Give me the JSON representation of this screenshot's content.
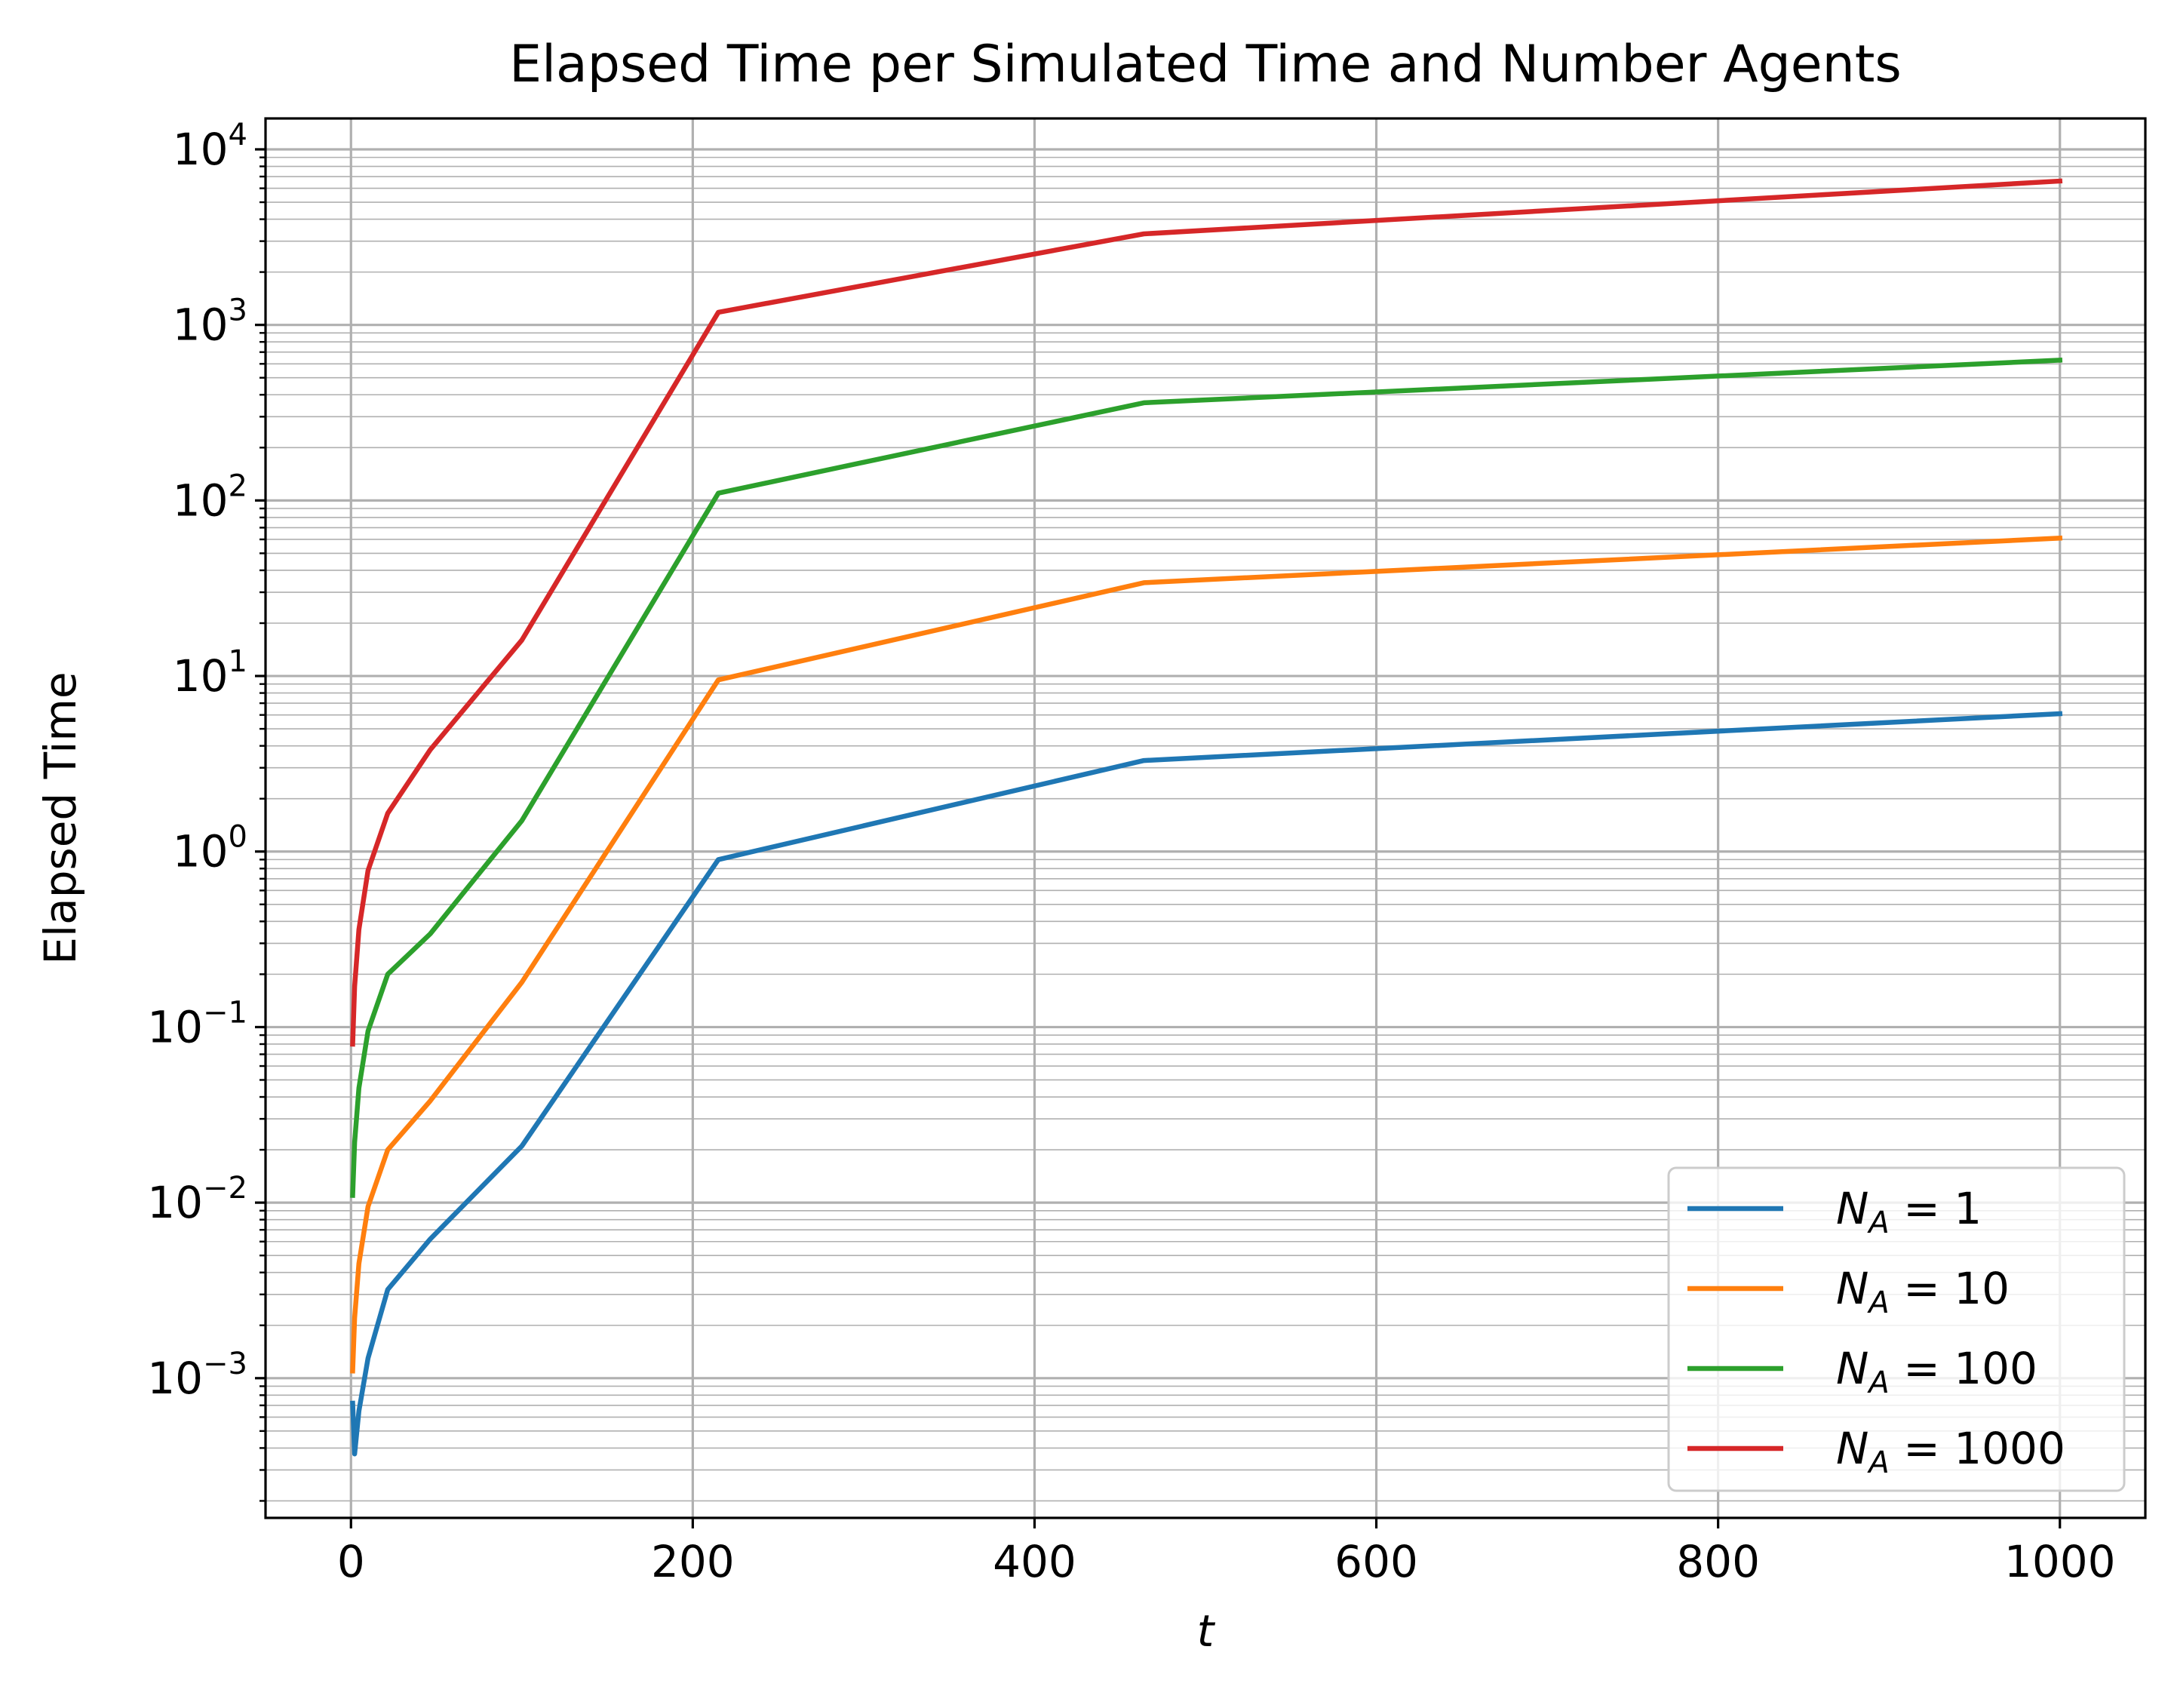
{
  "chart_data": {
    "type": "line",
    "title": "Elapsed Time per Simulated Time and Number Agents",
    "xlabel": "t",
    "ylabel": "Elapsed Time",
    "xlim": [
      -50,
      1050
    ],
    "ylim": [
      0.00016,
      15000
    ],
    "yscale": "log",
    "grid": "major and minor",
    "legend_position": "lower-right",
    "xticks": [
      0,
      200,
      400,
      600,
      800,
      1000
    ],
    "xtick_labels": [
      "0",
      "200",
      "400",
      "600",
      "800",
      "1000"
    ],
    "yticks": [
      0.001,
      0.01,
      0.1,
      1,
      10,
      100,
      1000,
      10000
    ],
    "ytick_labels": [
      {
        "base": "10",
        "exp": "−3"
      },
      {
        "base": "10",
        "exp": "−2"
      },
      {
        "base": "10",
        "exp": "−1"
      },
      {
        "base": "10",
        "exp": "0"
      },
      {
        "base": "10",
        "exp": "1"
      },
      {
        "base": "10",
        "exp": "2"
      },
      {
        "base": "10",
        "exp": "3"
      },
      {
        "base": "10",
        "exp": "4"
      }
    ],
    "x": [
      1,
      2.15,
      4.64,
      10,
      21.5,
      46.4,
      100,
      215,
      464,
      1000
    ],
    "series": [
      {
        "name": "N_A = 1",
        "legend": {
          "var": "N",
          "sub": "A",
          "rest": " = 1"
        },
        "color": "#1f77b4",
        "values": [
          0.00072,
          0.00037,
          0.00065,
          0.0013,
          0.0032,
          0.0062,
          0.021,
          0.9,
          3.3,
          6.1
        ]
      },
      {
        "name": "N_A = 10",
        "legend": {
          "var": "N",
          "sub": "A",
          "rest": " = 10"
        },
        "color": "#ff7f0e",
        "values": [
          0.0011,
          0.0022,
          0.0045,
          0.0095,
          0.02,
          0.038,
          0.18,
          9.5,
          34,
          61
        ]
      },
      {
        "name": "N_A = 100",
        "legend": {
          "var": "N",
          "sub": "A",
          "rest": " = 100"
        },
        "color": "#2ca02c",
        "values": [
          0.011,
          0.022,
          0.045,
          0.095,
          0.2,
          0.34,
          1.5,
          110,
          360,
          630
        ]
      },
      {
        "name": "N_A = 1000",
        "legend": {
          "var": "N",
          "sub": "A",
          "rest": " = 1000"
        },
        "color": "#d62728",
        "values": [
          0.08,
          0.17,
          0.36,
          0.78,
          1.65,
          3.8,
          16,
          1180,
          3300,
          6600
        ]
      }
    ]
  }
}
